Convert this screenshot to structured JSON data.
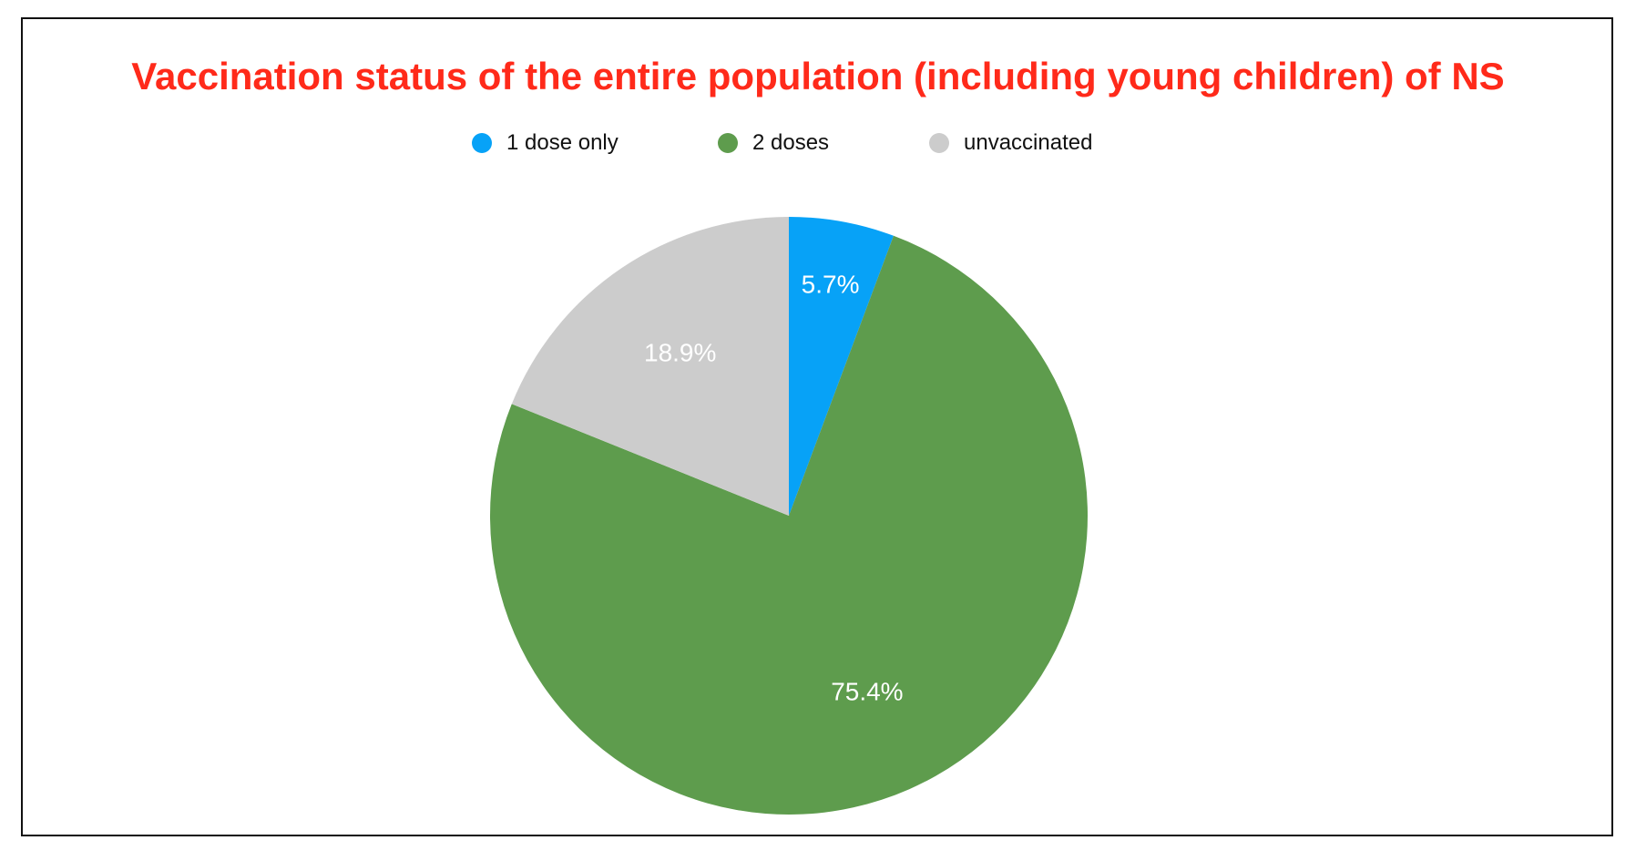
{
  "chart_data": {
    "type": "pie",
    "title": "Vaccination status of the entire population (including young children) of NS",
    "title_color": "#ff2a1a",
    "legend_position": "top",
    "slices": [
      {
        "name": "1 dose only",
        "value": 5.7,
        "label": "5.7%",
        "color": "#07a2f7"
      },
      {
        "name": "2 doses",
        "value": 75.4,
        "label": "75.4%",
        "color": "#5e9c4d"
      },
      {
        "name": "unvaccinated",
        "value": 18.9,
        "label": "18.9%",
        "color": "#cccccc"
      }
    ]
  }
}
